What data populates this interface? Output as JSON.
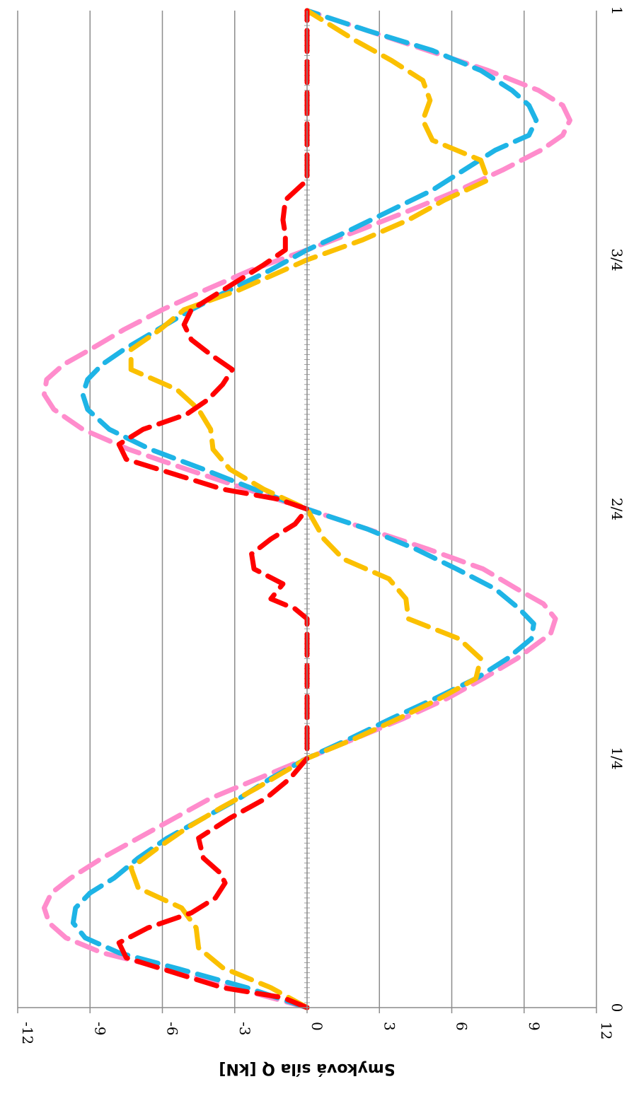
{
  "chart_data": {
    "type": "line",
    "title": "",
    "xlabel": "",
    "ylabel": "Smyková síla Q [kN]",
    "orientation": "rotated-90-clockwise",
    "ylim": [
      -12,
      12
    ],
    "y_ticks": [
      -12,
      -9,
      -6,
      -3,
      0,
      3,
      6,
      9,
      12
    ],
    "y_tick_labels": [
      "-12",
      "-9",
      "-6",
      "-3",
      "0",
      "3",
      "6",
      "9",
      "12"
    ],
    "xlim": [
      0,
      1
    ],
    "x_ticks": [
      0,
      0.25,
      0.5,
      0.75,
      1
    ],
    "x_tick_labels": [
      "0",
      "1/4",
      "2/4",
      "3/4",
      "1"
    ],
    "grid": true,
    "legend": "none",
    "series": [
      {
        "color": "#ff8ccc",
        "style": "dashed",
        "x": [
          0,
          0.02,
          0.04,
          0.055,
          0.07,
          0.085,
          0.1,
          0.115,
          0.13,
          0.15,
          0.17,
          0.19,
          0.21,
          0.23,
          0.25,
          0.27,
          0.29,
          0.31,
          0.33,
          0.35,
          0.375,
          0.39,
          0.405,
          0.42,
          0.44,
          0.46,
          0.48,
          0.5,
          0.52,
          0.54,
          0.56,
          0.58,
          0.6,
          0.615,
          0.63,
          0.645,
          0.66,
          0.68,
          0.7,
          0.72,
          0.74,
          0.76,
          0.78,
          0.8,
          0.82,
          0.84,
          0.86,
          0.875,
          0.89,
          0.905,
          0.92,
          0.94,
          0.96,
          0.98,
          1
        ],
        "y": [
          0,
          -3,
          -6,
          -8.5,
          -10,
          -10.7,
          -10.9,
          -10.6,
          -9.8,
          -8.5,
          -7,
          -5.5,
          -4,
          -2,
          0,
          2,
          4,
          5.8,
          7.3,
          8.7,
          10.1,
          10.3,
          9.8,
          8.7,
          7.3,
          5,
          2.5,
          0,
          -2.5,
          -5,
          -7.4,
          -9.3,
          -10.5,
          -10.9,
          -10.8,
          -10.1,
          -9,
          -7.6,
          -6,
          -4.2,
          -2.3,
          0,
          2.2,
          4.3,
          6.3,
          8.1,
          9.7,
          10.6,
          10.9,
          10.6,
          9.6,
          7.5,
          5,
          2.5,
          0
        ]
      },
      {
        "color": "#1eb4e6",
        "style": "dashed",
        "x": [
          0,
          0.02,
          0.04,
          0.055,
          0.07,
          0.085,
          0.1,
          0.115,
          0.13,
          0.15,
          0.17,
          0.19,
          0.21,
          0.23,
          0.25,
          0.27,
          0.29,
          0.31,
          0.33,
          0.35,
          0.37,
          0.385,
          0.4,
          0.42,
          0.44,
          0.46,
          0.48,
          0.5,
          0.52,
          0.54,
          0.56,
          0.58,
          0.6,
          0.615,
          0.63,
          0.645,
          0.66,
          0.68,
          0.7,
          0.72,
          0.74,
          0.76,
          0.78,
          0.8,
          0.82,
          0.84,
          0.86,
          0.875,
          0.89,
          0.905,
          0.92,
          0.94,
          0.96,
          0.98,
          1
        ],
        "y": [
          0,
          -2.5,
          -5.5,
          -7.8,
          -9.2,
          -9.7,
          -9.6,
          -9,
          -8,
          -7,
          -5.8,
          -4.3,
          -2.8,
          -1.5,
          0,
          1.8,
          3.5,
          5.3,
          7,
          8.3,
          9.3,
          9.4,
          8.8,
          7.8,
          6.2,
          4.5,
          2.5,
          0,
          -2.2,
          -4.3,
          -6.5,
          -8.2,
          -9.1,
          -9.3,
          -9.1,
          -8.5,
          -7.6,
          -6.2,
          -4.8,
          -3.2,
          -1.5,
          0,
          1.8,
          3.5,
          5.2,
          6.5,
          7.8,
          9.2,
          9.5,
          9.2,
          8.5,
          7.2,
          5.2,
          2.5,
          0
        ]
      },
      {
        "color": "#fbc000",
        "style": "dashed",
        "x": [
          0,
          0.02,
          0.04,
          0.06,
          0.08,
          0.1,
          0.12,
          0.14,
          0.16,
          0.18,
          0.2,
          0.22,
          0.25,
          0.27,
          0.29,
          0.31,
          0.33,
          0.35,
          0.37,
          0.39,
          0.41,
          0.43,
          0.45,
          0.47,
          0.5,
          0.52,
          0.54,
          0.56,
          0.58,
          0.6,
          0.62,
          0.64,
          0.66,
          0.68,
          0.7,
          0.72,
          0.75,
          0.77,
          0.79,
          0.81,
          0.83,
          0.85,
          0.87,
          0.89,
          0.91,
          0.93,
          0.95,
          0.97,
          1
        ],
        "y": [
          0,
          -1.5,
          -3.5,
          -4.5,
          -4.6,
          -5.2,
          -7,
          -7.3,
          -6.2,
          -5,
          -3.6,
          -2.1,
          0,
          2,
          3.8,
          5.5,
          7,
          7.2,
          6.3,
          4.2,
          4.1,
          3.4,
          1.5,
          0.7,
          0,
          -1.8,
          -3.2,
          -3.9,
          -4,
          -4.5,
          -5.4,
          -7.3,
          -7.3,
          -6.1,
          -5.1,
          -2.8,
          0,
          2.3,
          4.2,
          5.7,
          7.5,
          7.2,
          5.2,
          4.8,
          5.1,
          4.8,
          3.5,
          2,
          0
        ]
      },
      {
        "color": "#ff0000",
        "style": "dashed",
        "x": [
          0,
          0.01,
          0.02,
          0.035,
          0.05,
          0.065,
          0.08,
          0.095,
          0.11,
          0.125,
          0.135,
          0.15,
          0.17,
          0.19,
          0.21,
          0.23,
          0.25,
          0.27,
          0.29,
          0.31,
          0.33,
          0.35,
          0.37,
          0.39,
          0.4,
          0.41,
          0.425,
          0.44,
          0.455,
          0.47,
          0.485,
          0.5,
          0.51,
          0.52,
          0.535,
          0.55,
          0.565,
          0.58,
          0.595,
          0.61,
          0.625,
          0.64,
          0.655,
          0.67,
          0.685,
          0.7,
          0.715,
          0.73,
          0.745,
          0.76,
          0.775,
          0.79,
          0.81,
          0.83,
          0.85,
          0.88,
          0.91,
          0.94,
          0.97,
          1
        ],
        "y": [
          0,
          -1,
          -3.5,
          -5.5,
          -7.5,
          -7.8,
          -6.6,
          -4.8,
          -3.8,
          -3.4,
          -3.6,
          -4.3,
          -4.5,
          -3.2,
          -1.7,
          -0.7,
          0,
          0,
          0,
          0,
          0,
          0,
          0,
          0,
          -0.5,
          -1.5,
          -1,
          -2.2,
          -2.3,
          -1.5,
          -0.5,
          0,
          -1.2,
          -3.5,
          -5.5,
          -7.5,
          -7.8,
          -6.8,
          -5,
          -4.1,
          -3.5,
          -3.1,
          -4,
          -4.8,
          -5.1,
          -4.8,
          -3.8,
          -2.8,
          -1.8,
          -0.9,
          -0.9,
          -1,
          -0.9,
          0,
          0,
          0,
          0,
          0,
          0,
          0
        ]
      }
    ]
  }
}
